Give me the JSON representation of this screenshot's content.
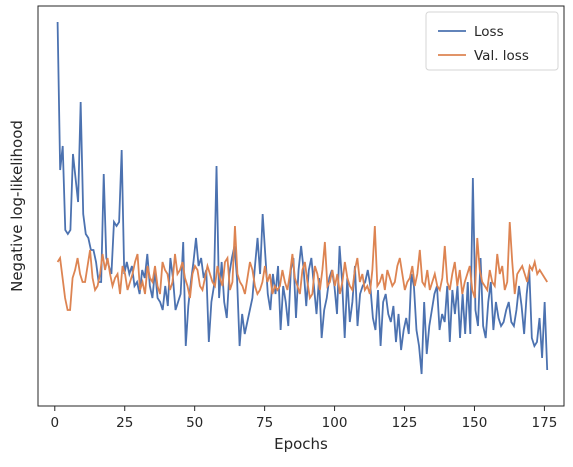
{
  "chart_data": {
    "type": "line",
    "xlabel": "Epochs",
    "ylabel": "Negative log-likelihood",
    "xlim": [
      -6,
      182
    ],
    "ylim": [
      0.0,
      1.0
    ],
    "y_tick_labels_shown": false,
    "grid": false,
    "legend_position": "top-right",
    "x_ticks": [
      0,
      25,
      50,
      75,
      100,
      125,
      150,
      175
    ],
    "x_tick_labels": [
      "0",
      "25",
      "50",
      "75",
      "100",
      "125",
      "150",
      "175"
    ],
    "series": [
      {
        "name": "Loss",
        "color": "#4c72b0",
        "values": [
          0.96,
          0.59,
          0.65,
          0.44,
          0.43,
          0.44,
          0.63,
          0.57,
          0.51,
          0.76,
          0.48,
          0.43,
          0.42,
          0.39,
          0.39,
          0.36,
          0.31,
          0.31,
          0.58,
          0.37,
          0.35,
          0.33,
          0.46,
          0.45,
          0.46,
          0.64,
          0.33,
          0.36,
          0.33,
          0.35,
          0.3,
          0.31,
          0.28,
          0.34,
          0.32,
          0.38,
          0.3,
          0.27,
          0.34,
          0.27,
          0.26,
          0.24,
          0.3,
          0.25,
          0.37,
          0.32,
          0.24,
          0.26,
          0.28,
          0.41,
          0.15,
          0.25,
          0.31,
          0.36,
          0.42,
          0.35,
          0.37,
          0.32,
          0.34,
          0.16,
          0.26,
          0.3,
          0.6,
          0.27,
          0.36,
          0.26,
          0.22,
          0.33,
          0.37,
          0.4,
          0.32,
          0.15,
          0.23,
          0.18,
          0.21,
          0.24,
          0.27,
          0.35,
          0.42,
          0.33,
          0.48,
          0.38,
          0.28,
          0.24,
          0.33,
          0.28,
          0.35,
          0.19,
          0.3,
          0.26,
          0.2,
          0.34,
          0.37,
          0.22,
          0.34,
          0.4,
          0.34,
          0.25,
          0.34,
          0.37,
          0.3,
          0.23,
          0.32,
          0.17,
          0.24,
          0.27,
          0.32,
          0.34,
          0.3,
          0.23,
          0.4,
          0.31,
          0.17,
          0.32,
          0.21,
          0.26,
          0.35,
          0.2,
          0.28,
          0.3,
          0.31,
          0.34,
          0.3,
          0.22,
          0.19,
          0.29,
          0.15,
          0.26,
          0.28,
          0.23,
          0.21,
          0.25,
          0.16,
          0.23,
          0.14,
          0.19,
          0.22,
          0.18,
          0.33,
          0.3,
          0.19,
          0.15,
          0.08,
          0.26,
          0.13,
          0.2,
          0.24,
          0.28,
          0.3,
          0.19,
          0.23,
          0.21,
          0.3,
          0.16,
          0.29,
          0.23,
          0.3,
          0.17,
          0.28,
          0.18,
          0.31,
          0.18,
          0.57,
          0.24,
          0.2,
          0.37,
          0.2,
          0.17,
          0.26,
          0.31,
          0.19,
          0.26,
          0.22,
          0.2,
          0.21,
          0.24,
          0.26,
          0.21,
          0.2,
          0.24,
          0.3,
          0.25,
          0.18,
          0.28,
          0.34,
          0.17,
          0.15,
          0.16,
          0.22,
          0.12,
          0.26,
          0.09
        ],
        "values_note": ""
      },
      {
        "name": "Val. loss",
        "color": "#dd8452",
        "values": [
          0.36,
          0.37,
          0.32,
          0.27,
          0.24,
          0.24,
          0.32,
          0.34,
          0.37,
          0.33,
          0.31,
          0.31,
          0.35,
          0.39,
          0.32,
          0.29,
          0.3,
          0.33,
          0.38,
          0.34,
          0.37,
          0.33,
          0.3,
          0.32,
          0.33,
          0.28,
          0.35,
          0.33,
          0.29,
          0.31,
          0.33,
          0.36,
          0.38,
          0.29,
          0.31,
          0.28,
          0.35,
          0.32,
          0.31,
          0.35,
          0.3,
          0.28,
          0.36,
          0.34,
          0.33,
          0.29,
          0.31,
          0.38,
          0.33,
          0.34,
          0.36,
          0.32,
          0.3,
          0.27,
          0.33,
          0.35,
          0.34,
          0.3,
          0.29,
          0.32,
          0.35,
          0.33,
          0.31,
          0.3,
          0.35,
          0.32,
          0.3,
          0.36,
          0.37,
          0.29,
          0.31,
          0.45,
          0.33,
          0.31,
          0.3,
          0.28,
          0.32,
          0.36,
          0.34,
          0.3,
          0.28,
          0.29,
          0.31,
          0.35,
          0.31,
          0.33,
          0.28,
          0.3,
          0.29,
          0.3,
          0.34,
          0.31,
          0.29,
          0.33,
          0.38,
          0.32,
          0.3,
          0.28,
          0.34,
          0.36,
          0.31,
          0.27,
          0.28,
          0.35,
          0.33,
          0.29,
          0.34,
          0.41,
          0.3,
          0.31,
          0.34,
          0.3,
          0.33,
          0.28,
          0.31,
          0.36,
          0.32,
          0.3,
          0.29,
          0.34,
          0.37,
          0.31,
          0.33,
          0.29,
          0.3,
          0.28,
          0.34,
          0.45,
          0.3,
          0.31,
          0.33,
          0.29,
          0.34,
          0.32,
          0.3,
          0.31,
          0.35,
          0.37,
          0.33,
          0.29,
          0.31,
          0.32,
          0.35,
          0.3,
          0.33,
          0.39,
          0.31,
          0.3,
          0.34,
          0.29,
          0.31,
          0.33,
          0.3,
          0.29,
          0.32,
          0.4,
          0.31,
          0.29,
          0.33,
          0.36,
          0.3,
          0.34,
          0.28,
          0.31,
          0.33,
          0.35,
          0.29,
          0.27,
          0.42,
          0.34,
          0.31,
          0.3,
          0.29,
          0.34,
          0.31,
          0.3,
          0.38,
          0.33,
          0.35,
          0.29,
          0.31,
          0.46,
          0.36,
          0.28,
          0.33,
          0.34,
          0.35,
          0.33,
          0.31,
          0.35,
          0.34,
          0.36,
          0.33,
          0.34,
          0.33,
          0.32,
          0.31
        ],
        "values_note": ""
      }
    ]
  }
}
